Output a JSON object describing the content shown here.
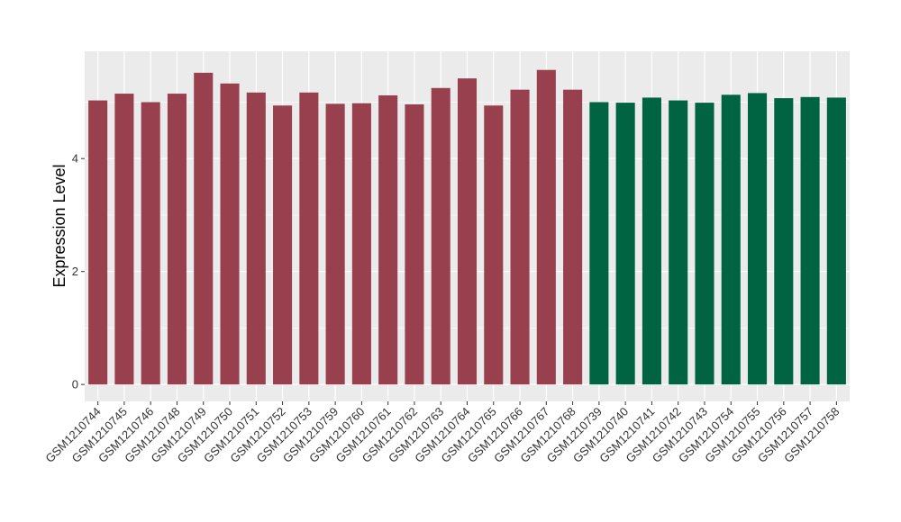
{
  "chart_data": {
    "type": "bar",
    "title": "",
    "xlabel": "",
    "ylabel": "Expression Level",
    "ylim": [
      -0.3,
      5.9
    ],
    "yticks": [
      0,
      2,
      4
    ],
    "grid": true,
    "legend": "none",
    "panel_background": "#ebebeb",
    "grid_color": "#ffffff",
    "categories": [
      "GSM1210744",
      "GSM1210745",
      "GSM1210746",
      "GSM1210748",
      "GSM1210749",
      "GSM1210750",
      "GSM1210751",
      "GSM1210752",
      "GSM1210753",
      "GSM1210759",
      "GSM1210760",
      "GSM1210761",
      "GSM1210762",
      "GSM1210763",
      "GSM1210764",
      "GSM1210765",
      "GSM1210766",
      "GSM1210767",
      "GSM1210768",
      "GSM1210739",
      "GSM1210740",
      "GSM1210741",
      "GSM1210742",
      "GSM1210743",
      "GSM1210754",
      "GSM1210755",
      "GSM1210756",
      "GSM1210757",
      "GSM1210758"
    ],
    "values": [
      5.03,
      5.15,
      5.0,
      5.15,
      5.52,
      5.33,
      5.17,
      4.94,
      5.17,
      4.97,
      4.98,
      5.12,
      4.96,
      5.25,
      5.42,
      4.94,
      5.22,
      5.57,
      5.22,
      5.0,
      4.99,
      5.08,
      5.03,
      4.99,
      5.13,
      5.16,
      5.07,
      5.09,
      5.08
    ],
    "group_colors": [
      "#99404f",
      "#99404f",
      "#99404f",
      "#99404f",
      "#99404f",
      "#99404f",
      "#99404f",
      "#99404f",
      "#99404f",
      "#99404f",
      "#99404f",
      "#99404f",
      "#99404f",
      "#99404f",
      "#99404f",
      "#99404f",
      "#99404f",
      "#99404f",
      "#99404f",
      "#006442",
      "#006442",
      "#006442",
      "#006442",
      "#006442",
      "#006442",
      "#006442",
      "#006442",
      "#006442",
      "#006442"
    ]
  }
}
